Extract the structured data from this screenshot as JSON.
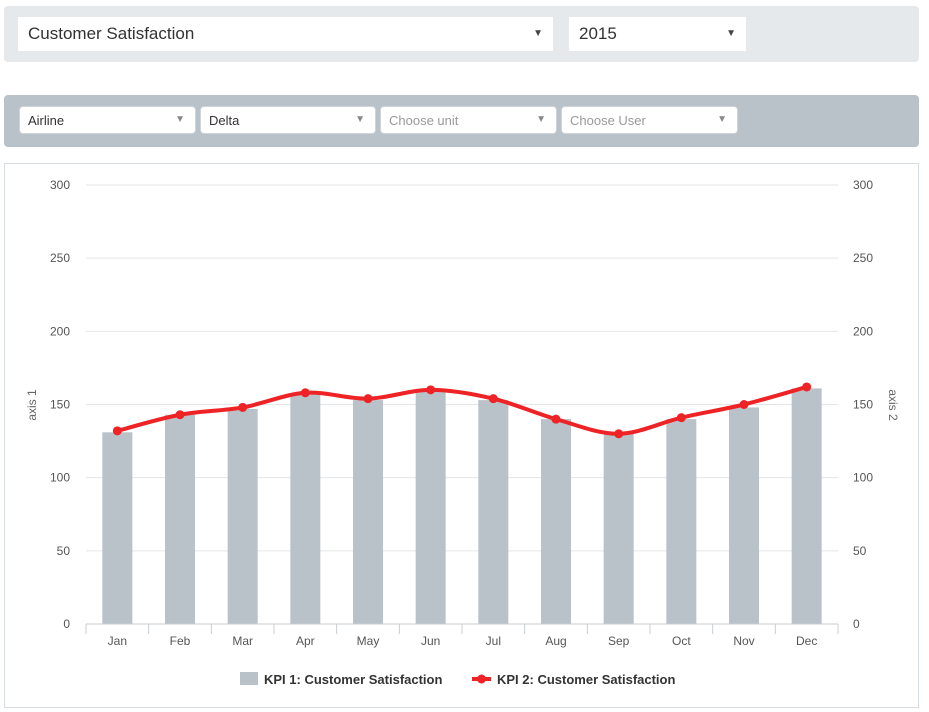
{
  "filters": {
    "kpi_select": "Customer Satisfaction",
    "year_select": "2015",
    "industry_select": "Airline",
    "company_select": "Delta",
    "unit_placeholder": "Choose unit",
    "user_placeholder": "Choose User"
  },
  "chart_data": {
    "type": "bar",
    "categories": [
      "Jan",
      "Feb",
      "Mar",
      "Apr",
      "May",
      "Jun",
      "Jul",
      "Aug",
      "Sep",
      "Oct",
      "Nov",
      "Dec"
    ],
    "ylabel": "axis 1",
    "ylabel2": "axis 2",
    "ylim": [
      0,
      300
    ],
    "y2lim": [
      0,
      300
    ],
    "yticks": [
      "0",
      "50",
      "100",
      "150",
      "200",
      "250",
      "300"
    ],
    "grid": true,
    "legend_position": "bottom",
    "series": [
      {
        "name": "KPI 1: Customer Satisfaction",
        "type": "bar",
        "axis": "left",
        "color": "#b9c2c9",
        "values": [
          131,
          143,
          147,
          157,
          153,
          159,
          153,
          140,
          130,
          140,
          148,
          161
        ]
      },
      {
        "name": "KPI 2: Customer Satisfaction",
        "type": "line",
        "axis": "right",
        "color": "#ee2326",
        "values": [
          132,
          143,
          148,
          158,
          154,
          160,
          154,
          140,
          130,
          141,
          150,
          162
        ]
      }
    ]
  }
}
